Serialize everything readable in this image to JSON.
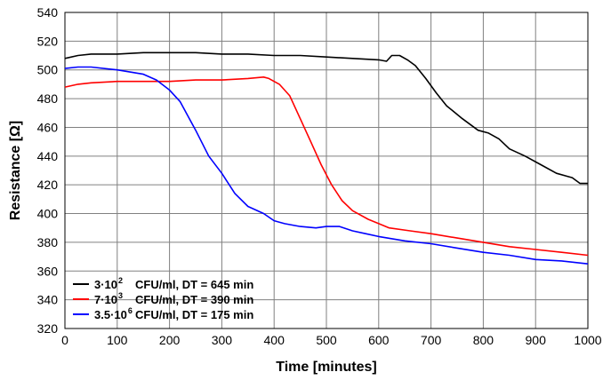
{
  "chart_data": {
    "type": "line",
    "title": "",
    "xlabel": "Time [minutes]",
    "ylabel": "Resistance [Ω]",
    "xlim": [
      0,
      1000
    ],
    "ylim": [
      320,
      540
    ],
    "x_ticks": [
      0,
      100,
      200,
      300,
      400,
      500,
      600,
      700,
      800,
      900,
      1000
    ],
    "y_ticks": [
      320,
      340,
      360,
      380,
      400,
      420,
      440,
      460,
      480,
      500,
      520,
      540
    ],
    "grid": true,
    "legend_position": "bottom-left",
    "series": [
      {
        "name_base": "3·10",
        "name_exp": "2",
        "name_rest": "CFU/ml, DT = 645 min",
        "color": "#000000",
        "points": [
          [
            0,
            508
          ],
          [
            25,
            510
          ],
          [
            50,
            511
          ],
          [
            100,
            511
          ],
          [
            150,
            512
          ],
          [
            200,
            512
          ],
          [
            250,
            512
          ],
          [
            300,
            511
          ],
          [
            350,
            511
          ],
          [
            400,
            510
          ],
          [
            450,
            510
          ],
          [
            500,
            509
          ],
          [
            550,
            508
          ],
          [
            600,
            507
          ],
          [
            615,
            506
          ],
          [
            625,
            510
          ],
          [
            640,
            510
          ],
          [
            655,
            507
          ],
          [
            670,
            503
          ],
          [
            690,
            494
          ],
          [
            710,
            484
          ],
          [
            730,
            475
          ],
          [
            760,
            466
          ],
          [
            790,
            458
          ],
          [
            810,
            456
          ],
          [
            830,
            452
          ],
          [
            850,
            445
          ],
          [
            880,
            440
          ],
          [
            910,
            434
          ],
          [
            940,
            428
          ],
          [
            970,
            425
          ],
          [
            985,
            421
          ],
          [
            1000,
            421
          ]
        ]
      },
      {
        "name_base": "7·10",
        "name_exp": "3",
        "name_rest": "CFU/ml, DT = 390 min",
        "color": "#ff0000",
        "points": [
          [
            0,
            488
          ],
          [
            25,
            490
          ],
          [
            50,
            491
          ],
          [
            100,
            492
          ],
          [
            150,
            492
          ],
          [
            200,
            492
          ],
          [
            250,
            493
          ],
          [
            300,
            493
          ],
          [
            350,
            494
          ],
          [
            380,
            495
          ],
          [
            390,
            494
          ],
          [
            410,
            490
          ],
          [
            430,
            482
          ],
          [
            450,
            466
          ],
          [
            470,
            450
          ],
          [
            490,
            434
          ],
          [
            510,
            420
          ],
          [
            530,
            409
          ],
          [
            550,
            402
          ],
          [
            580,
            396
          ],
          [
            620,
            390
          ],
          [
            660,
            388
          ],
          [
            700,
            386
          ],
          [
            750,
            383
          ],
          [
            800,
            380
          ],
          [
            850,
            377
          ],
          [
            900,
            375
          ],
          [
            950,
            373
          ],
          [
            1000,
            371
          ]
        ]
      },
      {
        "name_base": "3.5·10",
        "name_exp": "6",
        "name_rest": "CFU/ml, DT = 175 min",
        "color": "#0000ff",
        "points": [
          [
            0,
            501
          ],
          [
            25,
            502
          ],
          [
            50,
            502
          ],
          [
            100,
            500
          ],
          [
            150,
            497
          ],
          [
            175,
            493
          ],
          [
            200,
            486
          ],
          [
            220,
            478
          ],
          [
            250,
            458
          ],
          [
            275,
            440
          ],
          [
            300,
            428
          ],
          [
            325,
            414
          ],
          [
            350,
            405
          ],
          [
            380,
            400
          ],
          [
            400,
            395
          ],
          [
            420,
            393
          ],
          [
            450,
            391
          ],
          [
            480,
            390
          ],
          [
            500,
            391
          ],
          [
            525,
            391
          ],
          [
            550,
            388
          ],
          [
            575,
            386
          ],
          [
            600,
            384
          ],
          [
            650,
            381
          ],
          [
            700,
            379
          ],
          [
            750,
            376
          ],
          [
            800,
            373
          ],
          [
            850,
            371
          ],
          [
            900,
            368
          ],
          [
            950,
            367
          ],
          [
            1000,
            365
          ]
        ]
      }
    ]
  }
}
